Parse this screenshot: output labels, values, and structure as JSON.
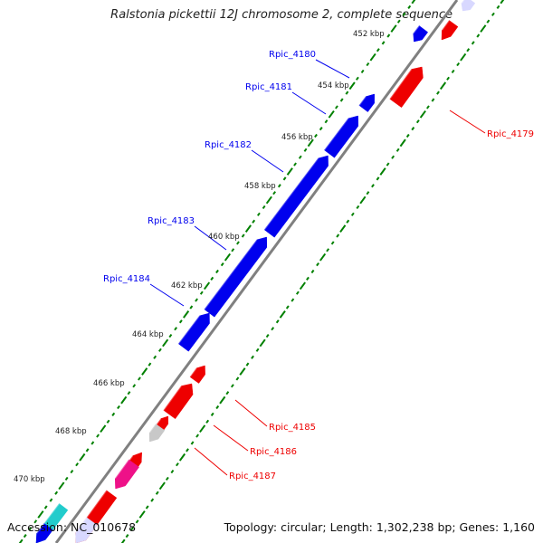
{
  "title": "Ralstonia pickettii 12J chromosome 2, complete sequence",
  "footer": {
    "accession": "Accession: NC_010678",
    "topology": "Topology: circular; Length: 1,302,238 bp; Genes: 1,160"
  },
  "kbp_ticks": [
    "452 kbp",
    "454 kbp",
    "456 kbp",
    "458 kbp",
    "460 kbp",
    "462 kbp",
    "464 kbp",
    "466 kbp",
    "468 kbp",
    "470 kbp"
  ],
  "gene_labels_forward": [
    "Rpic_4180",
    "Rpic_4181",
    "Rpic_4182",
    "Rpic_4183",
    "Rpic_4184"
  ],
  "gene_labels_reverse": [
    "Rpic_4179",
    "Rpic_4185",
    "Rpic_4186",
    "Rpic_4187"
  ],
  "colors": {
    "forward": "#0000ee",
    "reverse": "#ee0000",
    "backbone": "#808080",
    "ticks": "#008000",
    "grey_gene": "#c8c8c8",
    "pink_gene": "#ee1188",
    "cyan_gene": "#22cccc"
  }
}
